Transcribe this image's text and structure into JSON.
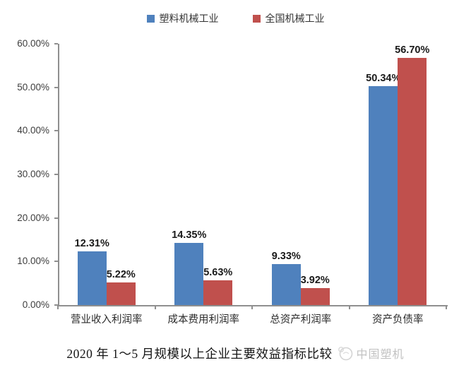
{
  "legend": {
    "items": [
      {
        "label": "塑料机械工业",
        "color": "#4f81bd"
      },
      {
        "label": "全国机械工业",
        "color": "#c0504d"
      }
    ]
  },
  "chart_data": {
    "type": "bar",
    "categories": [
      "营业收入利润率",
      "成本费用利润率",
      "总资产利润率",
      "资产负债率"
    ],
    "series": [
      {
        "name": "塑料机械工业",
        "color": "#4f81bd",
        "values": [
          12.31,
          14.35,
          9.33,
          50.34
        ],
        "labels": [
          "12.31%",
          "14.35%",
          "9.33%",
          "50.34%"
        ]
      },
      {
        "name": "全国机械工业",
        "color": "#c0504d",
        "values": [
          5.22,
          5.63,
          3.92,
          56.7
        ],
        "labels": [
          "5.22%",
          "5.63%",
          "3.92%",
          "56.70%"
        ]
      }
    ],
    "ylim": [
      0,
      60
    ],
    "ytick_step": 10,
    "ytick_labels": [
      "0.00%",
      "10.00%",
      "20.00%",
      "30.00%",
      "40.00%",
      "50.00%",
      "60.00%"
    ],
    "grid": false,
    "legend_position": "top",
    "title": "2020 年 1～5 月规模以上企业主要效益指标比较"
  },
  "caption": {
    "title": "2020 年 1～5 月规模以上企业主要效益指标比较",
    "watermark": "中国塑机"
  },
  "colors": {
    "series_blue": "#4f81bd",
    "series_red": "#c0504d",
    "axis": "#8f8f8f",
    "watermark_gray": "#c2c2c2"
  }
}
